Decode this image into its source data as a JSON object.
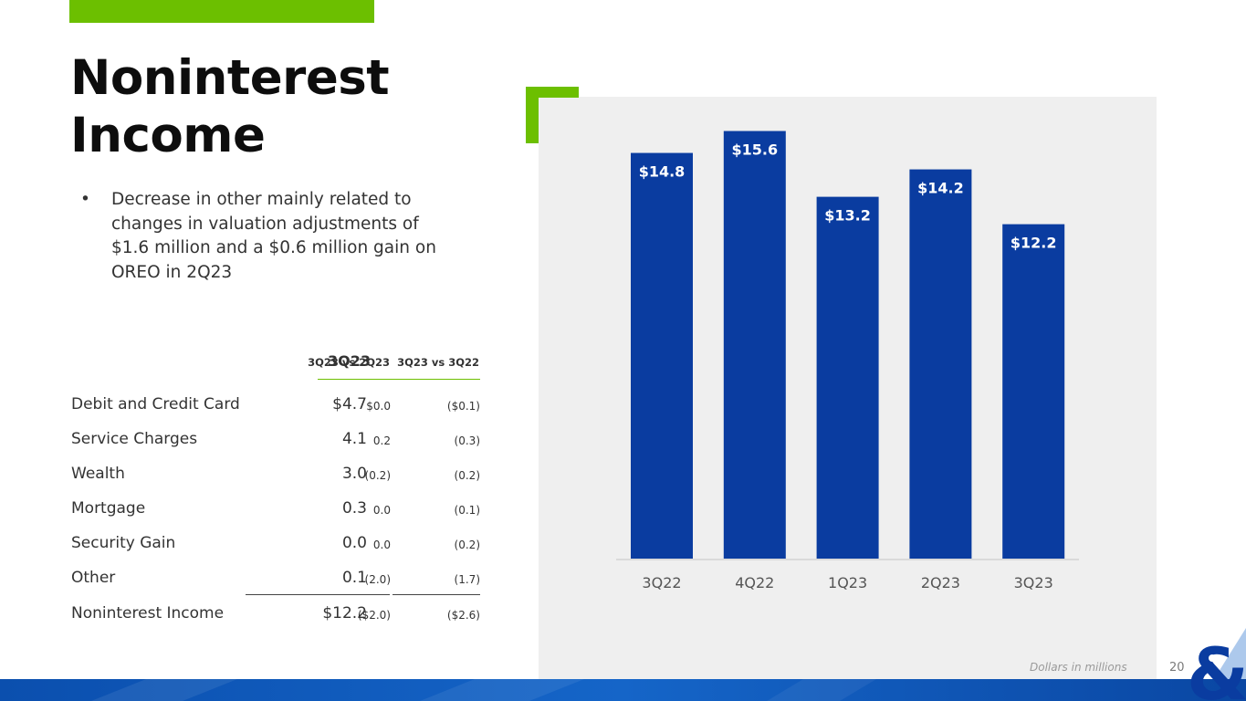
{
  "theme": {
    "accent_green": "#6cbf00",
    "bar_blue": "#0a3ca0",
    "panel_gray": "#efefef",
    "band_blue": "#1060c0"
  },
  "slide": {
    "title_line1": "Noninterest",
    "title_line2": "Income",
    "bullet_symbol": "•",
    "bullets": [
      "Decrease in other mainly related to changes in valuation adjustments of $1.6 million and a $0.6 million gain on OREO in 2Q23"
    ],
    "footnote": "Dollars in millions",
    "page_number": "20"
  },
  "table": {
    "headers": [
      "3Q23",
      "3Q23 vs 2Q23",
      "3Q23 vs 3Q22"
    ],
    "rows": [
      {
        "label": "Debit and Credit Card",
        "value": "$4.7",
        "vs_2q23": "$0.0",
        "vs_3q22": "($0.1)"
      },
      {
        "label": "Service Charges",
        "value": "4.1",
        "vs_2q23": "0.2",
        "vs_3q22": "(0.3)"
      },
      {
        "label": "Wealth",
        "value": "3.0",
        "vs_2q23": "(0.2)",
        "vs_3q22": "(0.2)"
      },
      {
        "label": "Mortgage",
        "value": "0.3",
        "vs_2q23": "0.0",
        "vs_3q22": "(0.1)"
      },
      {
        "label": "Security Gain",
        "value": "0.0",
        "vs_2q23": "0.0",
        "vs_3q22": "(0.2)"
      },
      {
        "label": "Other",
        "value": "0.1",
        "vs_2q23": "(2.0)",
        "vs_3q22": "(1.7)"
      },
      {
        "label": "Noninterest Income",
        "value": "$12.2",
        "vs_2q23": "($2.0)",
        "vs_3q22": "($2.6)"
      }
    ]
  },
  "chart_data": {
    "type": "bar",
    "categories": [
      "3Q22",
      "4Q22",
      "1Q23",
      "2Q23",
      "3Q23"
    ],
    "values": [
      14.8,
      15.6,
      13.2,
      14.2,
      12.2
    ],
    "labels": [
      "$14.8",
      "$15.6",
      "$13.2",
      "$14.2",
      "$12.2"
    ],
    "ylim": [
      0,
      16.65
    ],
    "grid": false,
    "legend": "none"
  }
}
